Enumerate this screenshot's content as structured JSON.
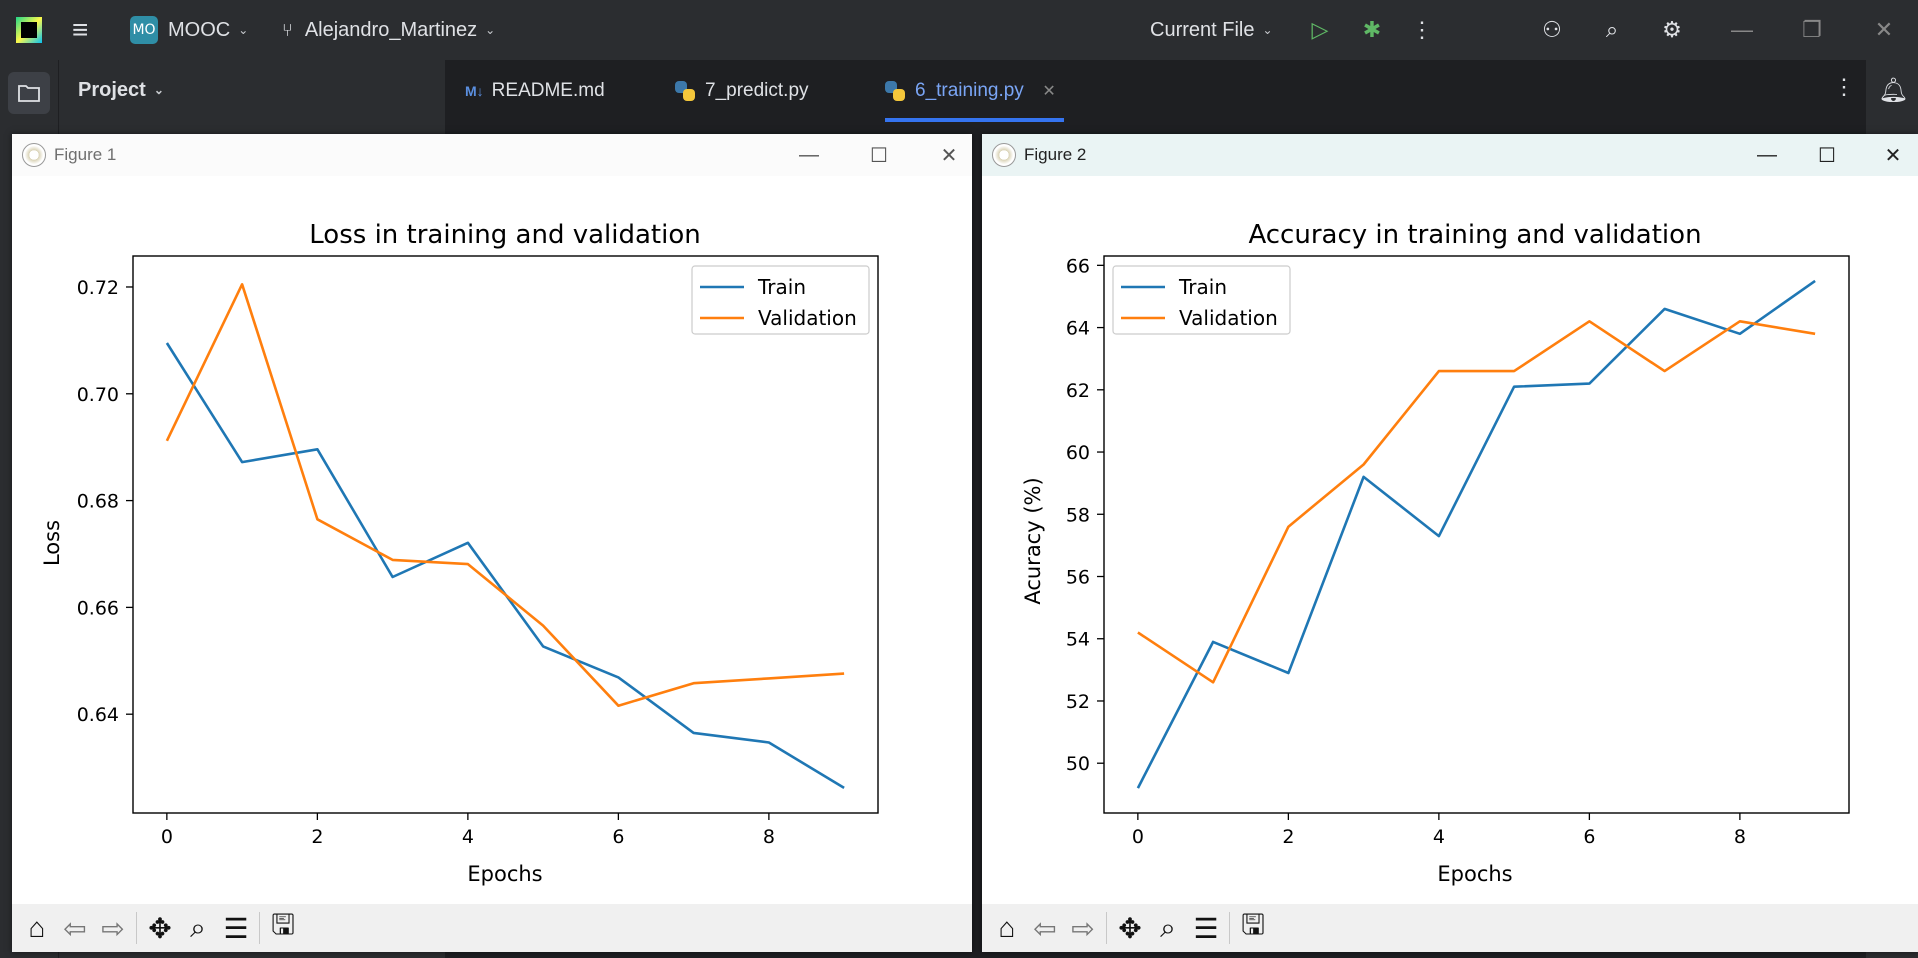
{
  "ide": {
    "project_badge": "MO",
    "project_name": "MOOC",
    "branch": "Alejandro_Martinez",
    "run_config": "Current File",
    "project_panel_label": "Project",
    "tabs": [
      {
        "label": "README.md",
        "type": "markdown",
        "active": false
      },
      {
        "label": "7_predict.py",
        "type": "python",
        "active": false
      },
      {
        "label": "6_training.py",
        "type": "python",
        "active": true
      }
    ]
  },
  "figures": [
    {
      "window_title": "Figure 1",
      "toolbar": [
        "home-icon",
        "back-icon",
        "forward-icon",
        "pan-icon",
        "zoom-icon",
        "configure-subplots-icon",
        "save-icon"
      ]
    },
    {
      "window_title": "Figure 2",
      "toolbar": [
        "home-icon",
        "back-icon",
        "forward-icon",
        "pan-icon",
        "zoom-icon",
        "configure-subplots-icon",
        "save-icon"
      ]
    }
  ],
  "colors": {
    "train": "#1f77b4",
    "validation": "#ff7f0e"
  },
  "chart_data": [
    {
      "type": "line",
      "title": "Loss in training and validation",
      "xlabel": "Epochs",
      "ylabel": "Loss",
      "x": [
        0,
        1,
        2,
        3,
        4,
        5,
        6,
        7,
        8,
        9
      ],
      "xlim": [
        -0.45,
        9.45
      ],
      "ylim": [
        0.6215,
        0.7258
      ],
      "xticks": [
        0,
        2,
        4,
        6,
        8
      ],
      "yticks": [
        0.64,
        0.66,
        0.68,
        0.7,
        0.72
      ],
      "ytick_labels": [
        "0.64",
        "0.66",
        "0.68",
        "0.70",
        "0.72"
      ],
      "legend": "upper right",
      "series": [
        {
          "name": "Train",
          "values": [
            0.7095,
            0.6872,
            0.6896,
            0.6657,
            0.6721,
            0.6527,
            0.6469,
            0.6365,
            0.6347,
            0.6262
          ]
        },
        {
          "name": "Validation",
          "values": [
            0.6912,
            0.7205,
            0.6765,
            0.6689,
            0.6681,
            0.6566,
            0.6416,
            0.6458,
            0.6467,
            0.6476
          ]
        }
      ]
    },
    {
      "type": "line",
      "title": "Accuracy in training and validation",
      "xlabel": "Epochs",
      "ylabel": "Acuracy (%)",
      "x": [
        0,
        1,
        2,
        3,
        4,
        5,
        6,
        7,
        8,
        9
      ],
      "xlim": [
        -0.45,
        9.45
      ],
      "ylim": [
        48.4,
        66.3
      ],
      "xticks": [
        0,
        2,
        4,
        6,
        8
      ],
      "yticks": [
        50,
        52,
        54,
        56,
        58,
        60,
        62,
        64,
        66
      ],
      "ytick_labels": [
        "50",
        "52",
        "54",
        "56",
        "58",
        "60",
        "62",
        "64",
        "66"
      ],
      "legend": "upper left",
      "series": [
        {
          "name": "Train",
          "values": [
            49.2,
            53.9,
            52.9,
            59.2,
            57.3,
            62.1,
            62.2,
            64.6,
            63.8,
            65.5
          ]
        },
        {
          "name": "Validation",
          "values": [
            54.2,
            52.6,
            57.6,
            59.6,
            62.6,
            62.6,
            64.2,
            62.6,
            64.2,
            63.8
          ]
        }
      ]
    }
  ]
}
